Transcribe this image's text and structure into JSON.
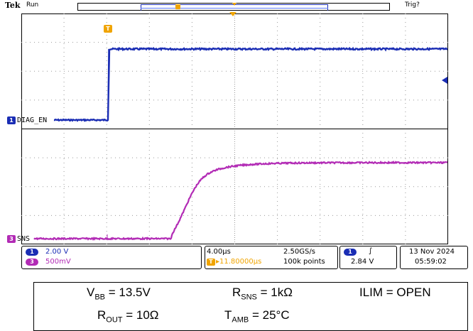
{
  "header": {
    "brand": "Tek",
    "run_state": "Run",
    "trigger_state": "Trig?"
  },
  "colors": {
    "ch1": "#1a2db4",
    "ch3": "#b22bb5",
    "trigger": "#f0a400",
    "grid": "#9a9a9a"
  },
  "markers": {
    "trigger_badge": "T",
    "ch1_badge": "1",
    "ch1_label": "DIAG_EN",
    "ch3_badge": "3",
    "ch3_label": "SNS"
  },
  "readout": {
    "ch1_num": "1",
    "ch1_scale": "2.00 V",
    "ch3_num": "3",
    "ch3_scale": "500mV",
    "timebase": "4.00μs",
    "trigger_position": "▸11.80000μs",
    "sample_rate": "2.50GS/s",
    "record_length": "100k points",
    "trig_source_num": "1",
    "trig_slope": "∫",
    "trig_level": "2.84 V",
    "date": "13 Nov 2024",
    "time": "05:59:02"
  },
  "conditions": {
    "vbb_sym": "V",
    "vbb_sub": "BB",
    "vbb_val": " = 13.5V",
    "rsns_sym": "R",
    "rsns_sub": "SNS",
    "rsns_val": " = 1kΩ",
    "ilim": "ILIM = OPEN",
    "rout_sym": "R",
    "rout_sub": "OUT",
    "rout_val": " = 10Ω",
    "tamb_sym": "T",
    "tamb_sub": "AMB",
    "tamb_val": " = 25°C"
  }
}
